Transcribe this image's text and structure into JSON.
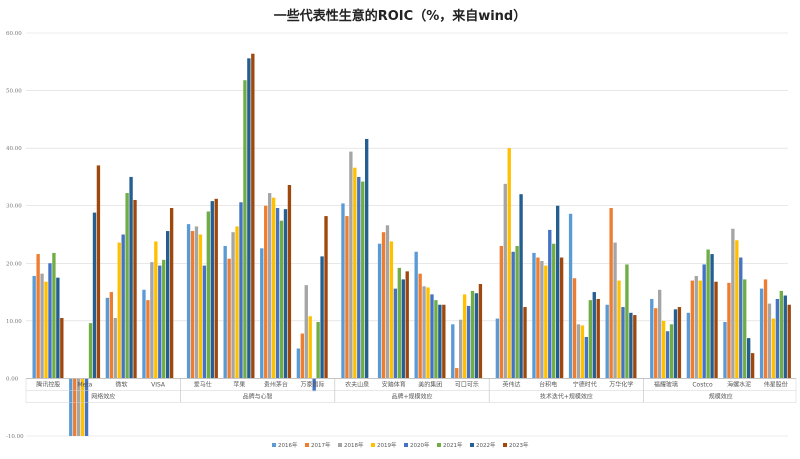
{
  "chart_data": {
    "type": "bar",
    "title": "一些代表性生意的ROIC（%，来自wind）",
    "ylim": [
      -10,
      60
    ],
    "y_ticks": [
      "60.00",
      "50.00",
      "40.00",
      "30.00",
      "20.00",
      "10.00",
      "0.00",
      "-10.00"
    ],
    "grid": true,
    "legend_position": "bottom",
    "colors": [
      "#5b9bd5",
      "#ed7d31",
      "#a5a5a5",
      "#ffc000",
      "#4472c4",
      "#70ad47",
      "#255e91",
      "#9e480e"
    ],
    "series": [
      {
        "name": "2016年"
      },
      {
        "name": "2017年"
      },
      {
        "name": "2018年"
      },
      {
        "name": "2019年"
      },
      {
        "name": "2020年"
      },
      {
        "name": "2021年"
      },
      {
        "name": "2022年"
      },
      {
        "name": "2023年"
      }
    ],
    "groups": [
      {
        "label": "网络效应",
        "companies": [
          {
            "name": "腾讯控股",
            "values": [
              17.8,
              21.6,
              18.2,
              16.8,
              20.0,
              21.8,
              17.5,
              10.5
            ]
          },
          {
            "name": "Meta",
            "values": [
              -10,
              -10,
              -10,
              -10,
              -10,
              9.6,
              28.8,
              37.0
            ]
          },
          {
            "name": "微软",
            "values": [
              14.0,
              15.0,
              10.5,
              23.6,
              25.0,
              32.2,
              35.0,
              31.0
            ]
          },
          {
            "name": "VISA",
            "values": [
              15.4,
              13.6,
              20.2,
              23.8,
              19.6,
              20.6,
              25.6,
              29.6
            ]
          }
        ]
      },
      {
        "label": "品牌与心智",
        "companies": [
          {
            "name": "爱马仕",
            "values": [
              26.8,
              25.6,
              26.4,
              25.0,
              19.6,
              29.0,
              30.8,
              31.2
            ]
          },
          {
            "name": "苹果",
            "values": [
              23.0,
              20.8,
              25.4,
              26.4,
              30.6,
              51.8,
              55.6,
              56.4
            ]
          },
          {
            "name": "贵州茅台",
            "values": [
              22.6,
              30.0,
              32.2,
              31.4,
              29.6,
              27.4,
              29.4,
              33.6
            ]
          },
          {
            "name": "万豪国际",
            "values": [
              5.2,
              7.8,
              16.2,
              10.8,
              -2.2,
              9.8,
              21.2,
              28.2
            ]
          }
        ]
      },
      {
        "label": "品牌+规模效应",
        "companies": [
          {
            "name": "农夫山泉",
            "values": [
              30.4,
              28.2,
              39.4,
              36.6,
              35.0,
              34.2,
              41.6,
              null
            ]
          },
          {
            "name": "安踏体育",
            "values": [
              23.4,
              25.4,
              26.6,
              23.8,
              15.6,
              19.2,
              17.2,
              18.6
            ]
          },
          {
            "name": "美的集团",
            "values": [
              22.0,
              18.2,
              16.0,
              15.8,
              14.6,
              13.6,
              12.8,
              12.8
            ]
          },
          {
            "name": "可口可乐",
            "values": [
              9.4,
              1.8,
              10.2,
              14.6,
              12.6,
              15.2,
              14.8,
              16.4
            ]
          }
        ]
      },
      {
        "label": "技术迭代+规模效应",
        "companies": [
          {
            "name": "英伟达",
            "values": [
              10.4,
              23.0,
              33.8,
              40.0,
              22.0,
              23.0,
              32.0,
              12.4
            ]
          },
          {
            "name": "台积电",
            "values": [
              21.8,
              21.0,
              20.4,
              19.6,
              25.8,
              23.4,
              30.0,
              21.0
            ]
          },
          {
            "name": "宁德时代",
            "values": [
              28.6,
              17.4,
              9.4,
              9.2,
              7.2,
              13.6,
              15.0,
              13.8
            ]
          },
          {
            "name": "万华化学",
            "values": [
              12.8,
              29.6,
              23.6,
              17.0,
              12.4,
              19.8,
              11.4,
              11.0
            ]
          }
        ]
      },
      {
        "label": "规模效应",
        "companies": [
          {
            "name": "福耀玻璃",
            "values": [
              13.8,
              12.2,
              15.4,
              10.0,
              8.2,
              9.4,
              12.0,
              12.4
            ]
          },
          {
            "name": "Costco",
            "values": [
              11.4,
              17.0,
              17.8,
              17.0,
              19.8,
              22.4,
              21.6,
              16.8
            ]
          },
          {
            "name": "海螺水泥",
            "values": [
              9.8,
              16.6,
              26.0,
              24.0,
              21.0,
              17.2,
              7.0,
              4.4
            ]
          },
          {
            "name": "伟星股份",
            "values": [
              15.6,
              17.2,
              13.0,
              10.4,
              13.8,
              15.2,
              14.4,
              12.8
            ]
          }
        ]
      }
    ]
  }
}
